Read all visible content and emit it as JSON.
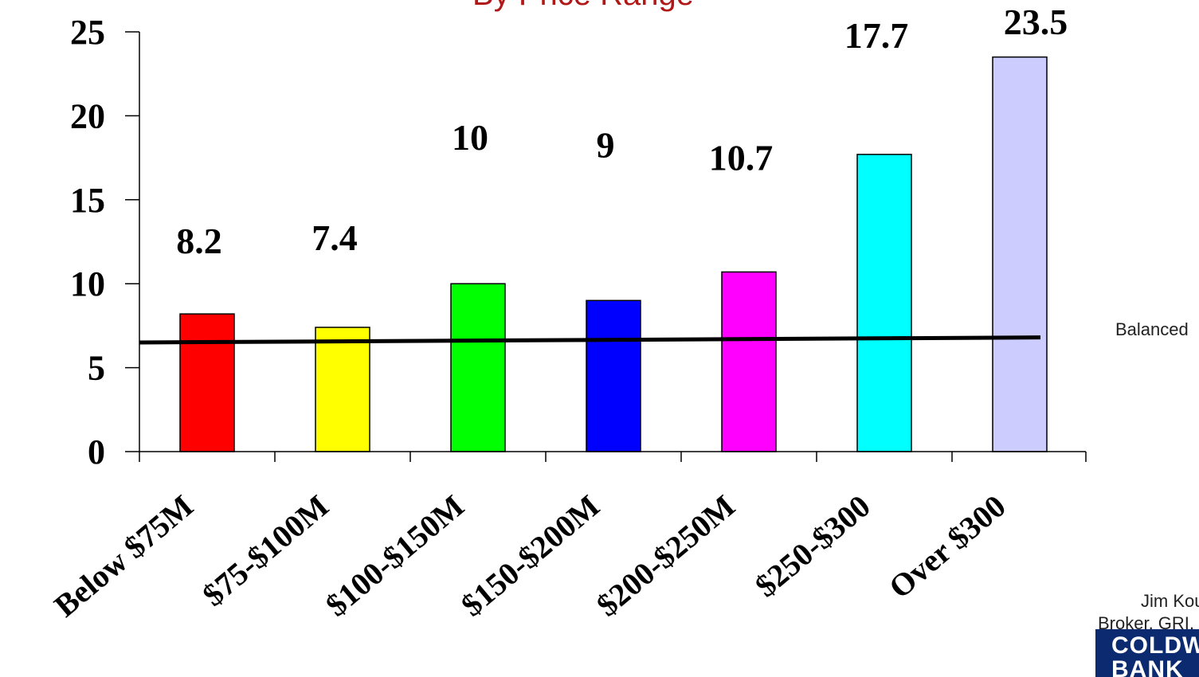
{
  "chart_data": {
    "type": "bar",
    "title": "By Price Range",
    "categories": [
      "Below $75M",
      "$75-$100M",
      "$100-$150M",
      "$150-$200M",
      "$200-$250M",
      "$250-$300",
      "Over $300"
    ],
    "values": [
      8.2,
      7.4,
      10,
      9,
      10.7,
      17.7,
      23.5
    ],
    "data_labels": [
      "8.2",
      "7.4",
      "10",
      "9",
      "10.7",
      "17.7",
      "23.5"
    ],
    "colors": [
      "#ff0000",
      "#ffff00",
      "#00ff00",
      "#0000ff",
      "#ff00ff",
      "#00ffff",
      "#ccccff"
    ],
    "y_ticks": [
      "0",
      "5",
      "10",
      "15",
      "20",
      "25"
    ],
    "ylim": [
      0,
      25
    ],
    "xlabel": "",
    "ylabel": "",
    "grid": false,
    "reference_line": {
      "label": "Balanced",
      "y_start": 6.5,
      "y_end": 6.8
    }
  },
  "side_text": {
    "balanced": "Balanced",
    "agent_name": "Jim Kou",
    "agent_credentials": "Broker, GRI,"
  },
  "logo": {
    "line1": "COLDW",
    "line2": "BANK",
    "color": "#0b2a6f"
  }
}
